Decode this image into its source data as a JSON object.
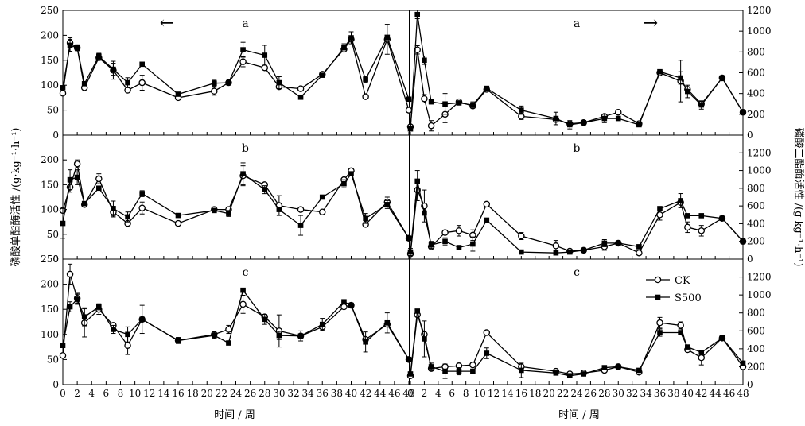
{
  "figure": {
    "left_ylabel": "磷酸单酯酶活性 /(g·kg⁻¹·h⁻¹)",
    "right_ylabel": "磷酸二酯酶活性 /(g·kg⁻¹·h⁻¹)",
    "xlabel": "时间 / 周",
    "arrow_left": "←",
    "arrow_right": "→",
    "legend": [
      {
        "name": "CK",
        "marker": "open-circle"
      },
      {
        "name": "S500",
        "marker": "filled-square"
      }
    ],
    "colors": {
      "line": "#000000",
      "background": "#ffffff"
    }
  },
  "chart_data": [
    {
      "type": "line",
      "panel": "a",
      "side": "left",
      "ylim": [
        0,
        250
      ],
      "yticks": [
        0,
        50,
        100,
        150,
        200,
        250
      ],
      "xlim": [
        0,
        48
      ],
      "xticks": [
        0,
        2,
        4,
        6,
        8,
        10,
        12,
        14,
        16,
        18,
        20,
        22,
        24,
        26,
        28,
        30,
        32,
        34,
        36,
        38,
        40,
        42,
        44,
        46,
        48
      ],
      "show_xtick_labels": false,
      "series": [
        {
          "name": "CK",
          "x": [
            0,
            1,
            2,
            3,
            5,
            7,
            9,
            11,
            16,
            21,
            23,
            25,
            28,
            30,
            33,
            36,
            39,
            40,
            42,
            45,
            48
          ],
          "y": [
            84,
            185,
            175,
            95,
            155,
            130,
            90,
            105,
            75,
            88,
            105,
            147,
            135,
            97,
            93,
            122,
            172,
            192,
            77,
            192,
            50
          ],
          "err": [
            0,
            10,
            5,
            0,
            5,
            18,
            0,
            15,
            0,
            8,
            0,
            10,
            0,
            0,
            0,
            0,
            0,
            0,
            0,
            30,
            0
          ]
        },
        {
          "name": "S500",
          "x": [
            0,
            1,
            2,
            3,
            5,
            7,
            9,
            11,
            16,
            21,
            23,
            25,
            28,
            30,
            33,
            36,
            39,
            40,
            42,
            45,
            48
          ],
          "y": [
            95,
            180,
            175,
            103,
            158,
            132,
            105,
            142,
            82,
            104,
            105,
            171,
            160,
            105,
            76,
            120,
            175,
            195,
            112,
            196,
            72
          ],
          "err": [
            0,
            12,
            6,
            0,
            6,
            12,
            10,
            0,
            0,
            6,
            0,
            15,
            20,
            12,
            0,
            0,
            8,
            12,
            6,
            0,
            0
          ]
        }
      ]
    },
    {
      "type": "line",
      "panel": "a",
      "side": "right",
      "ylim": [
        0,
        1200
      ],
      "yticks": [
        0,
        200,
        400,
        600,
        800,
        1000,
        1200
      ],
      "xlim": [
        0,
        48
      ],
      "xticks": [
        0,
        2,
        4,
        6,
        8,
        10,
        12,
        14,
        16,
        18,
        20,
        22,
        24,
        26,
        28,
        30,
        32,
        34,
        36,
        38,
        40,
        42,
        44,
        46,
        48
      ],
      "show_xtick_labels": false,
      "series": [
        {
          "name": "CK",
          "x": [
            0,
            1,
            2,
            3,
            5,
            7,
            9,
            11,
            16,
            21,
            23,
            25,
            28,
            30,
            33,
            36,
            39,
            40,
            42,
            45,
            48
          ],
          "y": [
            80,
            820,
            350,
            90,
            200,
            320,
            280,
            440,
            180,
            150,
            110,
            120,
            180,
            220,
            110,
            600,
            520,
            440,
            300,
            550,
            220
          ],
          "err": [
            0,
            40,
            40,
            50,
            80,
            0,
            0,
            0,
            30,
            0,
            0,
            0,
            0,
            0,
            0,
            0,
            200,
            0,
            0,
            0,
            0
          ]
        },
        {
          "name": "S500",
          "x": [
            0,
            1,
            2,
            3,
            5,
            7,
            9,
            11,
            16,
            21,
            23,
            25,
            28,
            30,
            33,
            36,
            39,
            40,
            42,
            45,
            48
          ],
          "y": [
            60,
            1160,
            720,
            320,
            300,
            310,
            290,
            450,
            240,
            160,
            100,
            120,
            160,
            160,
            100,
            610,
            550,
            420,
            290,
            550,
            220
          ],
          "err": [
            0,
            40,
            40,
            0,
            100,
            0,
            30,
            20,
            40,
            60,
            40,
            0,
            40,
            0,
            0,
            20,
            60,
            60,
            40,
            0,
            0
          ]
        }
      ]
    },
    {
      "type": "line",
      "panel": "b",
      "side": "left",
      "ylim": [
        0,
        250
      ],
      "yticks": [
        0,
        50,
        100,
        150,
        200
      ],
      "xlim": [
        0,
        48
      ],
      "xticks": [
        0,
        2,
        4,
        6,
        8,
        10,
        12,
        14,
        16,
        18,
        20,
        22,
        24,
        26,
        28,
        30,
        32,
        34,
        36,
        38,
        40,
        42,
        44,
        46,
        48
      ],
      "show_xtick_labels": false,
      "series": [
        {
          "name": "CK",
          "x": [
            0,
            1,
            2,
            3,
            5,
            7,
            9,
            11,
            16,
            21,
            23,
            25,
            28,
            30,
            33,
            36,
            39,
            40,
            42,
            45,
            48
          ],
          "y": [
            98,
            145,
            192,
            110,
            162,
            95,
            72,
            103,
            72,
            100,
            100,
            168,
            150,
            108,
            100,
            95,
            160,
            178,
            70,
            115,
            42
          ],
          "err": [
            0,
            10,
            8,
            0,
            10,
            10,
            0,
            12,
            0,
            0,
            0,
            20,
            0,
            20,
            0,
            0,
            0,
            0,
            0,
            10,
            0
          ]
        },
        {
          "name": "S500",
          "x": [
            0,
            1,
            2,
            3,
            5,
            7,
            9,
            11,
            16,
            21,
            23,
            25,
            28,
            30,
            33,
            36,
            39,
            40,
            42,
            45,
            48
          ],
          "y": [
            72,
            160,
            165,
            112,
            143,
            102,
            85,
            132,
            88,
            98,
            92,
            172,
            140,
            100,
            68,
            125,
            152,
            172,
            82,
            110,
            42
          ],
          "err": [
            30,
            20,
            15,
            0,
            0,
            15,
            10,
            6,
            0,
            0,
            6,
            22,
            8,
            0,
            20,
            0,
            8,
            0,
            10,
            8,
            0
          ]
        }
      ]
    },
    {
      "type": "line",
      "panel": "b",
      "side": "right",
      "ylim": [
        0,
        1400
      ],
      "yticks": [
        0,
        200,
        400,
        600,
        800,
        1000,
        1200
      ],
      "xlim": [
        0,
        48
      ],
      "xticks": [
        0,
        2,
        4,
        6,
        8,
        10,
        12,
        14,
        16,
        18,
        20,
        22,
        24,
        26,
        28,
        30,
        32,
        34,
        36,
        38,
        40,
        42,
        44,
        46,
        48
      ],
      "show_xtick_labels": false,
      "series": [
        {
          "name": "CK",
          "x": [
            0,
            1,
            2,
            3,
            5,
            7,
            9,
            11,
            16,
            21,
            23,
            25,
            28,
            30,
            33,
            36,
            39,
            40,
            42,
            45,
            48
          ],
          "y": [
            60,
            780,
            600,
            140,
            300,
            320,
            270,
            620,
            260,
            150,
            90,
            100,
            140,
            180,
            70,
            500,
            640,
            360,
            320,
            460,
            200
          ],
          "err": [
            0,
            120,
            180,
            0,
            0,
            60,
            60,
            0,
            40,
            60,
            0,
            0,
            40,
            0,
            0,
            60,
            0,
            60,
            60,
            0,
            0
          ]
        },
        {
          "name": "S500",
          "x": [
            0,
            1,
            2,
            3,
            5,
            7,
            9,
            11,
            16,
            21,
            23,
            25,
            28,
            30,
            33,
            36,
            39,
            40,
            42,
            45,
            48
          ],
          "y": [
            80,
            880,
            520,
            160,
            200,
            130,
            170,
            440,
            80,
            70,
            80,
            100,
            180,
            180,
            140,
            570,
            660,
            490,
            490,
            460,
            200
          ],
          "err": [
            40,
            120,
            0,
            40,
            40,
            0,
            80,
            0,
            0,
            0,
            0,
            0,
            40,
            0,
            0,
            0,
            80,
            0,
            0,
            0,
            0
          ]
        }
      ]
    },
    {
      "type": "line",
      "panel": "c",
      "side": "left",
      "ylim": [
        0,
        250
      ],
      "yticks": [
        0,
        50,
        100,
        150,
        200,
        250
      ],
      "xlim": [
        0,
        48
      ],
      "xticks": [
        0,
        2,
        4,
        6,
        8,
        10,
        12,
        14,
        16,
        18,
        20,
        22,
        24,
        26,
        28,
        30,
        32,
        34,
        36,
        38,
        40,
        42,
        44,
        46,
        48
      ],
      "xtick_labels": [
        "0",
        "2",
        "4",
        "6",
        "8",
        "10",
        "12",
        "14",
        "16",
        "18",
        "20",
        "22",
        "24",
        "26",
        "28",
        "30",
        "32",
        "34",
        "36",
        "38",
        "40",
        "42",
        "44",
        "46",
        "48"
      ],
      "series": [
        {
          "name": "CK",
          "x": [
            0,
            1,
            2,
            3,
            5,
            7,
            9,
            11,
            16,
            21,
            23,
            25,
            28,
            30,
            33,
            36,
            39,
            40,
            42,
            45,
            48
          ],
          "y": [
            58,
            220,
            172,
            123,
            150,
            118,
            78,
            130,
            88,
            100,
            110,
            160,
            135,
            107,
            97,
            115,
            155,
            158,
            90,
            120,
            50
          ],
          "err": [
            0,
            20,
            10,
            28,
            10,
            0,
            18,
            0,
            6,
            0,
            8,
            18,
            0,
            32,
            0,
            0,
            0,
            0,
            0,
            0,
            0
          ]
        },
        {
          "name": "S500",
          "x": [
            0,
            1,
            2,
            3,
            5,
            7,
            9,
            11,
            16,
            21,
            23,
            25,
            28,
            30,
            33,
            36,
            39,
            40,
            42,
            45,
            48
          ],
          "y": [
            78,
            155,
            170,
            135,
            155,
            110,
            100,
            130,
            88,
            98,
            83,
            188,
            130,
            98,
            97,
            120,
            165,
            158,
            85,
            123,
            50
          ],
          "err": [
            0,
            10,
            10,
            18,
            6,
            8,
            15,
            28,
            0,
            6,
            0,
            0,
            10,
            8,
            10,
            12,
            0,
            0,
            20,
            20,
            0
          ]
        }
      ]
    },
    {
      "type": "line",
      "panel": "c",
      "side": "right",
      "ylim": [
        0,
        1400
      ],
      "yticks": [
        0,
        200,
        400,
        600,
        800,
        1000,
        1200
      ],
      "xlim": [
        0,
        48
      ],
      "xticks": [
        0,
        2,
        4,
        6,
        8,
        10,
        12,
        14,
        16,
        18,
        20,
        22,
        24,
        26,
        28,
        30,
        32,
        34,
        36,
        38,
        40,
        42,
        44,
        46,
        48
      ],
      "xtick_labels": [
        "0",
        "2",
        "4",
        "6",
        "8",
        "10",
        "12",
        "14",
        "16",
        "18",
        "20",
        "22",
        "24",
        "26",
        "28",
        "30",
        "32",
        "34",
        "36",
        "38",
        "40",
        "42",
        "44",
        "46",
        "48"
      ],
      "series": [
        {
          "name": "CK",
          "x": [
            0,
            1,
            2,
            3,
            5,
            7,
            9,
            11,
            16,
            21,
            23,
            25,
            28,
            30,
            33,
            36,
            39,
            40,
            42,
            45,
            48
          ],
          "y": [
            100,
            780,
            560,
            180,
            200,
            210,
            220,
            580,
            200,
            150,
            120,
            130,
            160,
            200,
            140,
            690,
            660,
            390,
            300,
            520,
            200
          ],
          "err": [
            0,
            0,
            0,
            0,
            0,
            0,
            0,
            0,
            0,
            0,
            0,
            0,
            0,
            0,
            0,
            60,
            40,
            0,
            80,
            0,
            0
          ]
        },
        {
          "name": "S500",
          "x": [
            0,
            1,
            2,
            3,
            5,
            7,
            9,
            11,
            16,
            21,
            23,
            25,
            28,
            30,
            33,
            36,
            39,
            40,
            42,
            45,
            48
          ],
          "y": [
            120,
            820,
            510,
            200,
            150,
            150,
            150,
            350,
            160,
            130,
            100,
            120,
            190,
            200,
            160,
            580,
            580,
            420,
            360,
            520,
            240
          ],
          "err": [
            0,
            0,
            200,
            40,
            80,
            40,
            0,
            60,
            80,
            0,
            0,
            0,
            0,
            0,
            0,
            40,
            0,
            0,
            0,
            0,
            0
          ]
        }
      ]
    }
  ],
  "panel_labels": {
    "a": "a",
    "b": "b",
    "c": "c"
  }
}
